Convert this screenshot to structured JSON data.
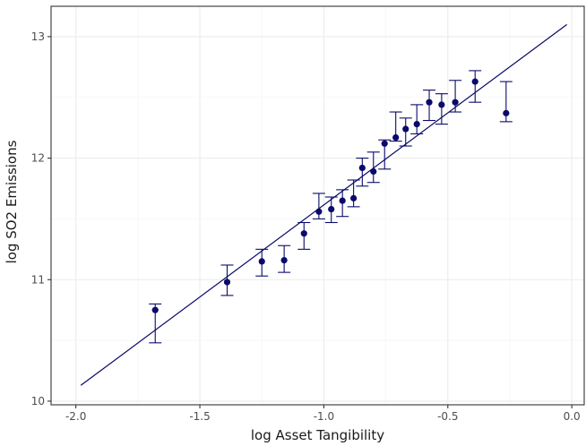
{
  "chart_data": {
    "type": "scatter",
    "title": "",
    "xlabel": "log Asset Tangibility",
    "ylabel": "log SO2 Emissions",
    "xlim": [
      -2.1,
      0.05
    ],
    "ylim": [
      9.97,
      13.25
    ],
    "x_ticks": [
      -2.0,
      -1.5,
      -1.0,
      -0.5,
      0.0
    ],
    "x_tick_labels": [
      "-2.0",
      "-1.5",
      "-1.0",
      "-0.5",
      "0.0"
    ],
    "y_ticks": [
      10,
      11,
      12,
      13
    ],
    "y_tick_labels": [
      "10",
      "11",
      "12",
      "13"
    ],
    "grid": true,
    "legend": "none",
    "colors": {
      "series": "#0a0a6b",
      "grid": "#ebebeb",
      "panel_border": "#333333"
    },
    "points": [
      {
        "x": -1.68,
        "y": 10.75,
        "low": 10.48,
        "high": 10.8
      },
      {
        "x": -1.39,
        "y": 10.98,
        "low": 10.87,
        "high": 11.12
      },
      {
        "x": -1.25,
        "y": 11.15,
        "low": 11.03,
        "high": 11.25
      },
      {
        "x": -1.16,
        "y": 11.16,
        "low": 11.06,
        "high": 11.28
      },
      {
        "x": -1.08,
        "y": 11.38,
        "low": 11.25,
        "high": 11.47
      },
      {
        "x": -1.02,
        "y": 11.56,
        "low": 11.5,
        "high": 11.71
      },
      {
        "x": -0.97,
        "y": 11.58,
        "low": 11.47,
        "high": 11.68
      },
      {
        "x": -0.925,
        "y": 11.65,
        "low": 11.52,
        "high": 11.74
      },
      {
        "x": -0.88,
        "y": 11.67,
        "low": 11.6,
        "high": 11.82
      },
      {
        "x": -0.845,
        "y": 11.92,
        "low": 11.77,
        "high": 12.0
      },
      {
        "x": -0.8,
        "y": 11.89,
        "low": 11.8,
        "high": 12.05
      },
      {
        "x": -0.755,
        "y": 12.12,
        "low": 11.91,
        "high": 12.15
      },
      {
        "x": -0.71,
        "y": 12.17,
        "low": 12.14,
        "high": 12.38
      },
      {
        "x": -0.67,
        "y": 12.24,
        "low": 12.1,
        "high": 12.33
      },
      {
        "x": -0.625,
        "y": 12.28,
        "low": 12.2,
        "high": 12.44
      },
      {
        "x": -0.575,
        "y": 12.46,
        "low": 12.31,
        "high": 12.56
      },
      {
        "x": -0.525,
        "y": 12.44,
        "low": 12.28,
        "high": 12.53
      },
      {
        "x": -0.47,
        "y": 12.46,
        "low": 12.38,
        "high": 12.64
      },
      {
        "x": -0.39,
        "y": 12.63,
        "low": 12.46,
        "high": 12.72
      },
      {
        "x": -0.265,
        "y": 12.37,
        "low": 12.3,
        "high": 12.63
      }
    ],
    "fit_line": {
      "x": [
        -1.98,
        -0.02
      ],
      "y": [
        10.13,
        13.1
      ]
    }
  }
}
